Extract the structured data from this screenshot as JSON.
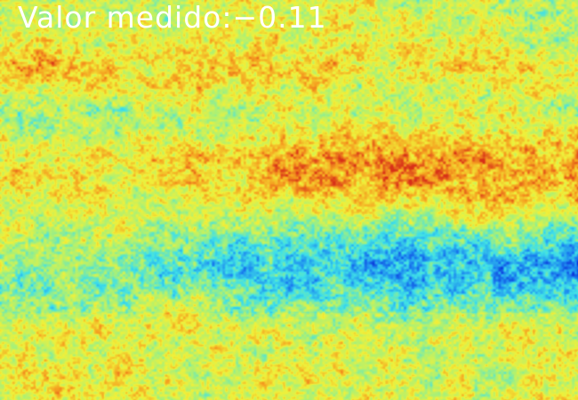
{
  "overlay": {
    "label": "Valor medido:",
    "value": "−0.11"
  },
  "colormap": {
    "name": "jet-like",
    "stops": [
      "#0a2bd6",
      "#1e8cf0",
      "#3fe0e8",
      "#a8f078",
      "#f0f03a",
      "#f5a020",
      "#d83018"
    ]
  }
}
